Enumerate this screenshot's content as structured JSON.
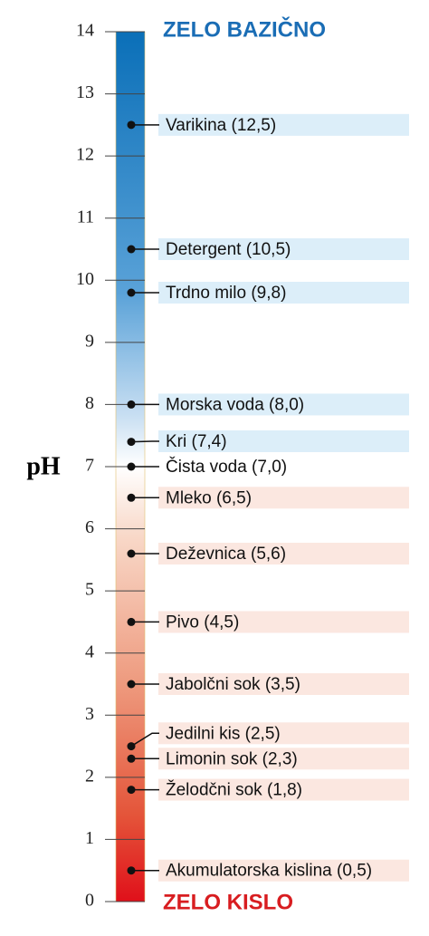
{
  "chart_data": {
    "type": "ph-scale",
    "axis_label": "pH",
    "top_label": "ZELO BAZIČNO",
    "bottom_label": "ZELO KISLO",
    "ylim": [
      0,
      14
    ],
    "yticks": [
      0,
      1,
      2,
      3,
      4,
      5,
      6,
      7,
      8,
      9,
      10,
      11,
      12,
      13,
      14
    ],
    "items": [
      {
        "label": "Varikina (12,5)",
        "value": 12.5,
        "color": "#dceef9"
      },
      {
        "label": "Detergent (10,5)",
        "value": 10.5,
        "color": "#dceef9"
      },
      {
        "label": "Trdno milo (9,8)",
        "value": 9.8,
        "color": "#dceef9"
      },
      {
        "label": "Morska voda (8,0)",
        "value": 8.0,
        "color": "#dceef9"
      },
      {
        "label": "Kri (7,4)",
        "value": 7.4,
        "color": "#dceef9"
      },
      {
        "label": "Čista voda (7,0)",
        "value": 7.0,
        "color": "#ffffff"
      },
      {
        "label": "Mleko (6,5)",
        "value": 6.5,
        "color": "#fbe7e0"
      },
      {
        "label": "Deževnica (5,6)",
        "value": 5.6,
        "color": "#fbe7e0"
      },
      {
        "label": "Pivo (4,5)",
        "value": 4.5,
        "color": "#fbe7e0"
      },
      {
        "label": "Jabolčni sok (3,5)",
        "value": 3.5,
        "color": "#fbe7e0"
      },
      {
        "label": "Jedilni kis (2,5)",
        "value": 2.5,
        "color": "#fbe7e0"
      },
      {
        "label": "Limonin sok (2,3)",
        "value": 2.3,
        "color": "#fbe7e0"
      },
      {
        "label": "Želodčni sok (1,8)",
        "value": 1.8,
        "color": "#fbe7e0"
      },
      {
        "label": "Akumulatorska kislina (0,5)",
        "value": 0.5,
        "color": "#fbe7e0"
      }
    ]
  }
}
